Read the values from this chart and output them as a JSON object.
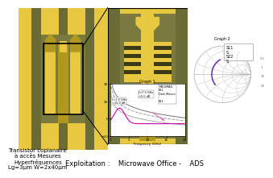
{
  "bg_color": "#ffffff",
  "transistor_label_lines": [
    "Transistor coplanaire",
    "à accès Mesures",
    "Hyperfréquences",
    "Lg=3μm W=2x40μm"
  ],
  "bottom_label": "Exploitation :    Microwave Office -    ADS",
  "gold_color": "#E8C840",
  "chip_bg": "#7A7A40",
  "chip_bg2": "#6B6B35",
  "metal_color": "#E8C840",
  "dark_metal": "#B09820",
  "stripe_color": "#6B6B35",
  "smith_curve_color": "#5500bb",
  "smith_bg": "#f8f8f8",
  "freq_curve_gray": "#888888",
  "freq_curve_magenta": "#cc00aa",
  "freq_curve_pink": "#dd44aa",
  "white": "#ffffff",
  "black": "#000000"
}
